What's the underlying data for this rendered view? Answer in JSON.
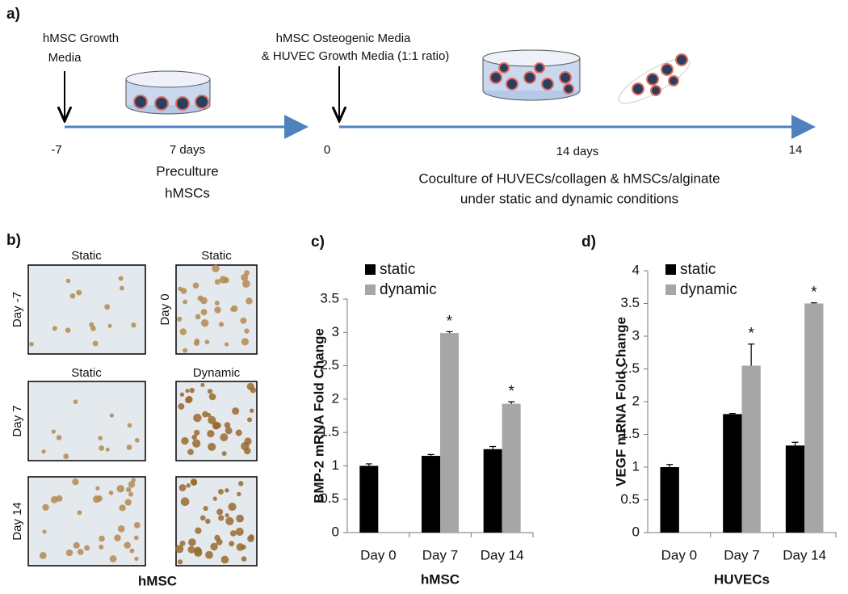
{
  "panel_a": {
    "label": "a)",
    "start_media": [
      "hMSC Growth",
      "Media"
    ],
    "switch_media": [
      "hMSC  Osteogenic Media",
      "& HUVEC Growth Media (1:1 ratio)"
    ],
    "timeline": {
      "start": "-7",
      "preculture_duration": "7 days",
      "switch": "0",
      "coculture_duration": "14 days",
      "end": "14"
    },
    "preculture": [
      "Preculture",
      "hMSCs"
    ],
    "coculture": [
      "Coculture of HUVECs/collagen & hMSCs/alginate",
      "under static and dynamic conditions"
    ]
  },
  "panel_b": {
    "label": "b)",
    "caption": "hMSC",
    "titles": [
      "Static",
      "Static",
      "Static",
      "Dynamic"
    ],
    "day_labels": [
      "Day -7",
      "Day 0",
      "Day 7",
      "Day 14"
    ]
  },
  "chart_data": [
    {
      "type": "bar",
      "panel_label": "c)",
      "xlabel": "hMSC",
      "ylabel": "BMP-2 mRNA Fold Change",
      "categories": [
        "Day 0",
        "Day 7",
        "Day 14"
      ],
      "series": [
        {
          "name": "static",
          "color": "#000000",
          "values": [
            1.0,
            1.15,
            1.25
          ],
          "errors": [
            0.03,
            0.02,
            0.04
          ]
        },
        {
          "name": "dynamic",
          "color": "#a6a6a6",
          "values": [
            null,
            2.99,
            1.93
          ],
          "errors": [
            null,
            0.02,
            0.03
          ],
          "significance": [
            null,
            "*",
            "*"
          ]
        }
      ],
      "ylim": [
        0,
        3.5
      ],
      "yticks": [
        0,
        0.5,
        1,
        1.5,
        2,
        2.5,
        3,
        3.5
      ],
      "legend": "top-left"
    },
    {
      "type": "bar",
      "panel_label": "d)",
      "xlabel": "HUVECs",
      "ylabel": "VEGF mRNA Fold Change",
      "categories": [
        "Day 0",
        "Day 7",
        "Day 14"
      ],
      "series": [
        {
          "name": "static",
          "color": "#000000",
          "values": [
            1.0,
            1.81,
            1.33
          ],
          "errors": [
            0.04,
            0.01,
            0.05
          ]
        },
        {
          "name": "dynamic",
          "color": "#a6a6a6",
          "values": [
            null,
            2.55,
            3.5
          ],
          "errors": [
            null,
            0.33,
            0.01
          ],
          "significance": [
            null,
            "*",
            "*"
          ]
        }
      ],
      "ylim": [
        0,
        4
      ],
      "yticks": [
        0,
        0.5,
        1,
        1.5,
        2,
        2.5,
        3,
        3.5,
        4
      ],
      "legend": "top-left"
    }
  ]
}
